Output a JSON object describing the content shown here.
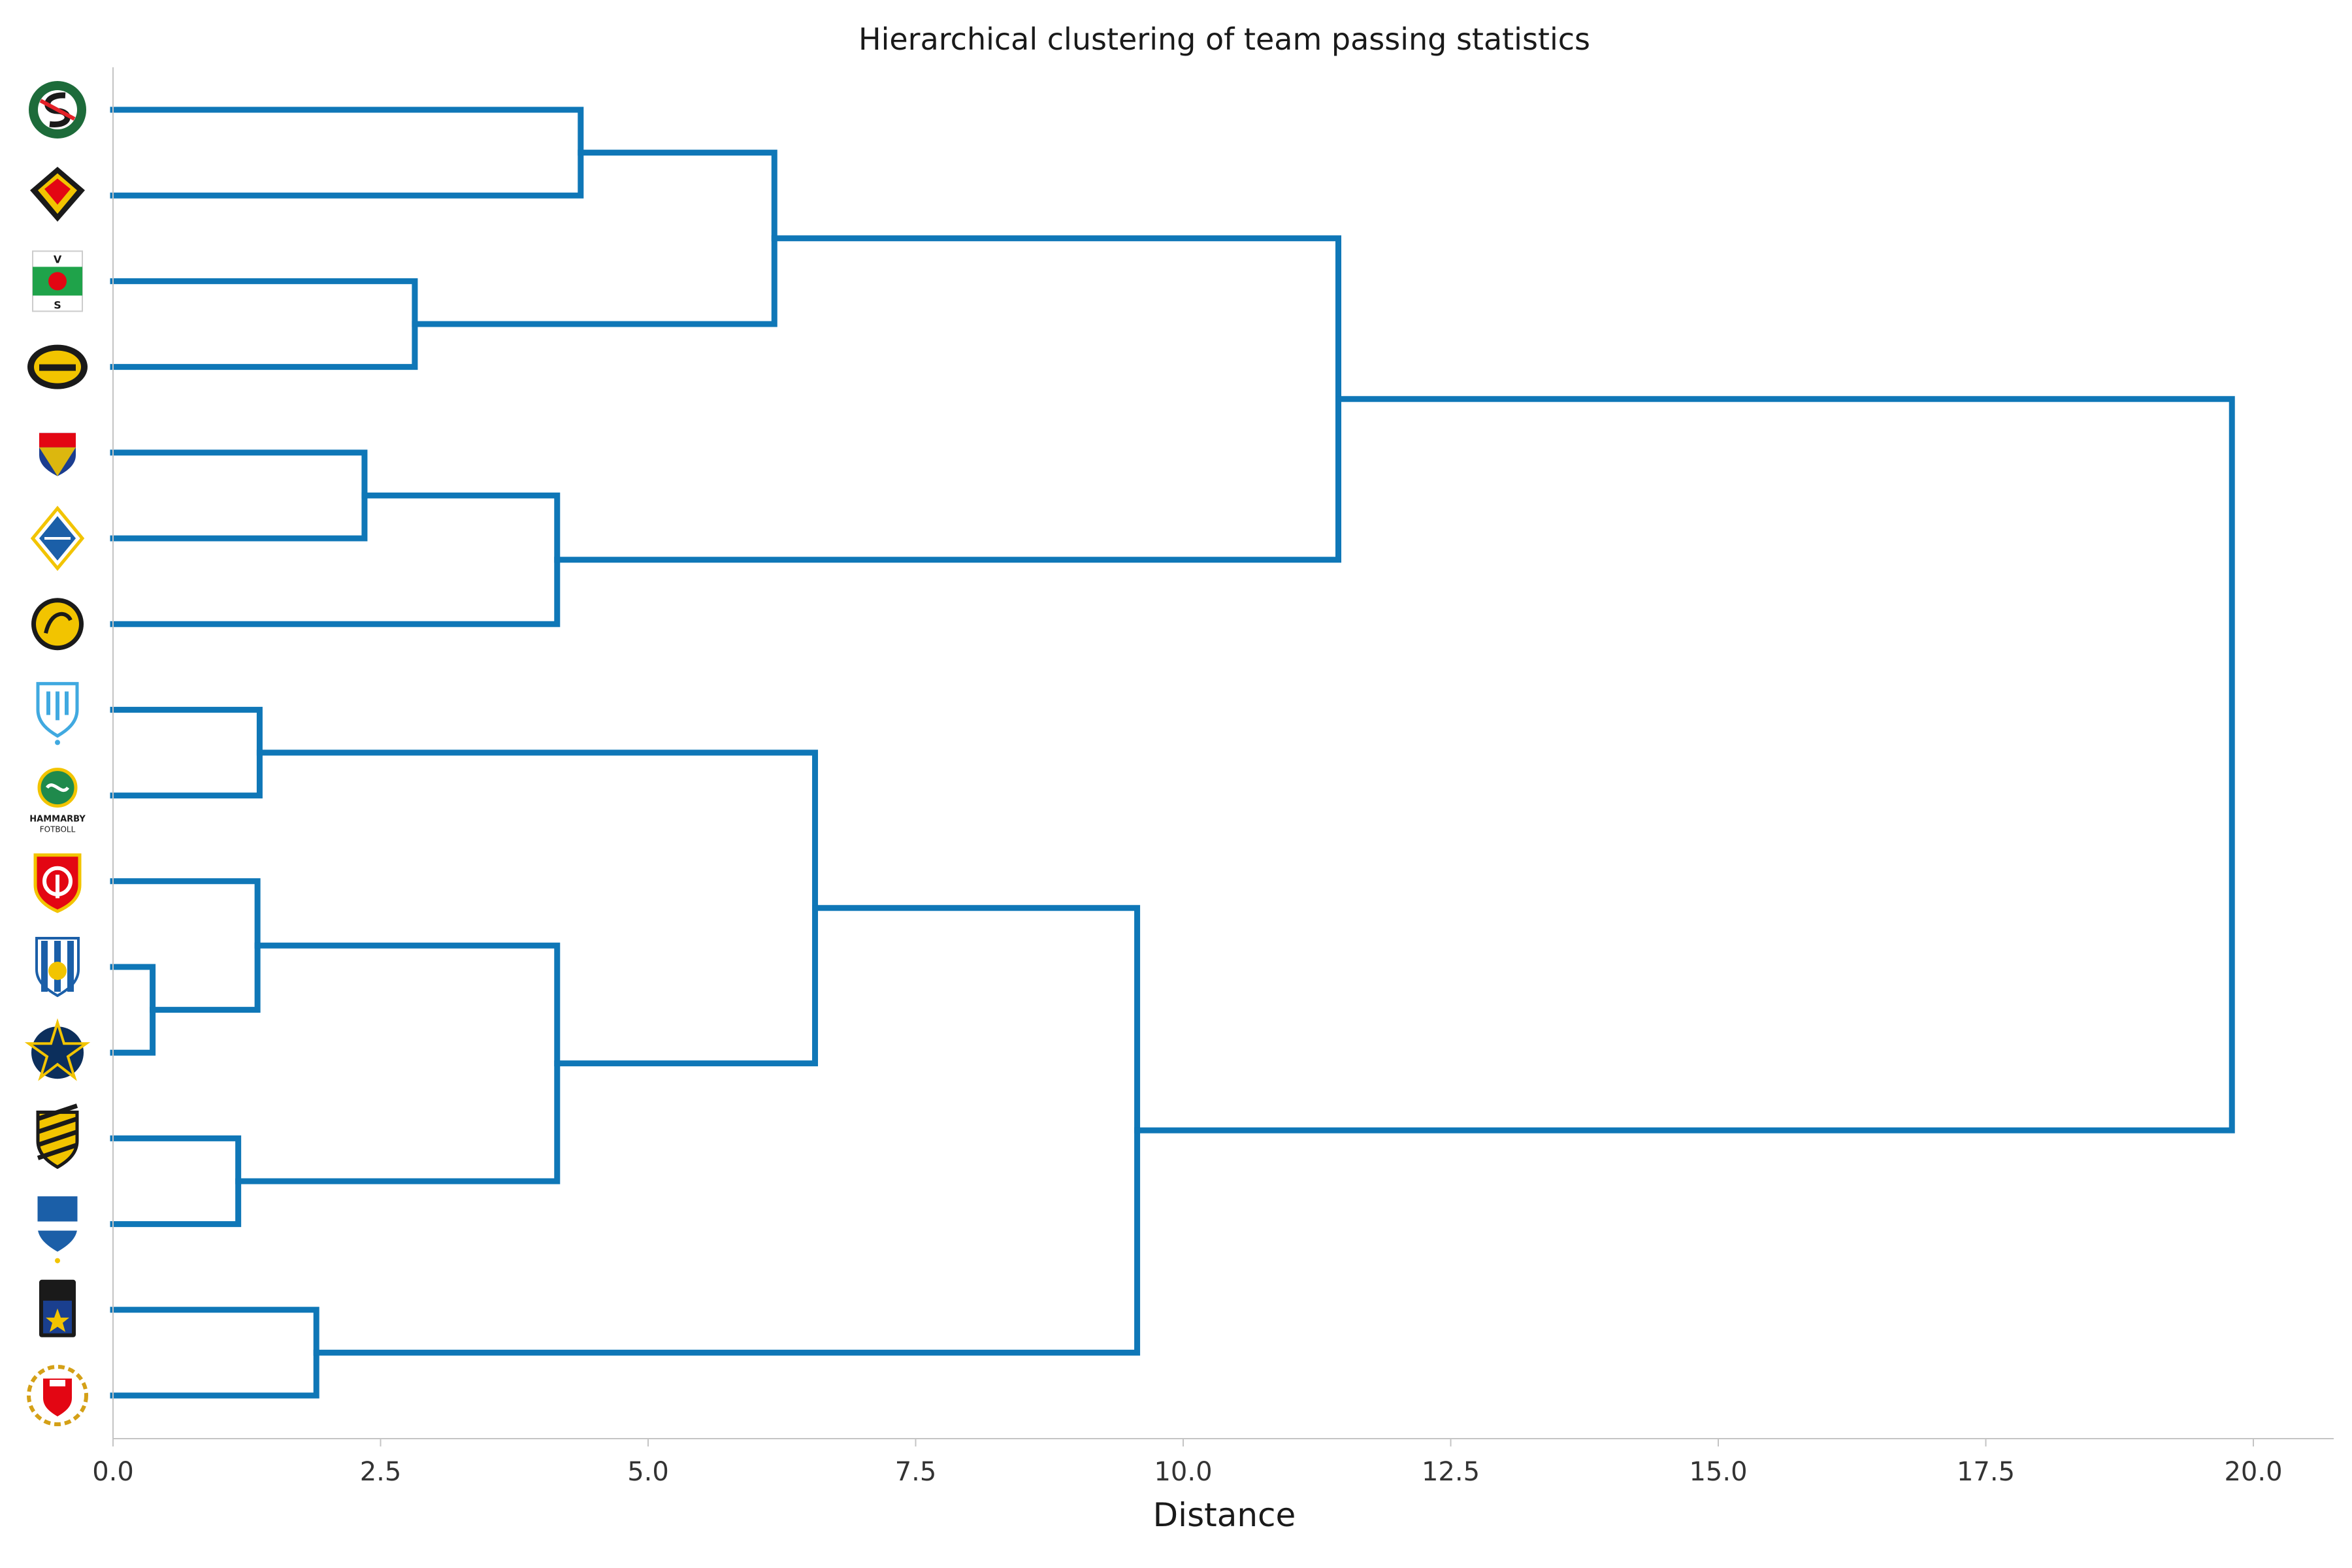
{
  "chart_data": {
    "type": "dendrogram",
    "orientation": "horizontal",
    "title": "Hierarchical clustering of team passing statistics",
    "xlabel": "Distance",
    "ylabel": "",
    "xlim": [
      0,
      20.8
    ],
    "xticks": [
      0.0,
      2.5,
      5.0,
      7.5,
      10.0,
      12.5,
      15.0,
      17.5,
      20.0
    ],
    "xtick_labels": [
      "0.0",
      "2.5",
      "5.0",
      "7.5",
      "10.0",
      "12.5",
      "15.0",
      "17.5",
      "20.0"
    ],
    "line_color": "#0f77b7",
    "leaves": [
      {
        "team": "Örebro SK",
        "logo": "orebro",
        "primary": "#1d6b3a",
        "secondary": "#e32128"
      },
      {
        "team": "Östersunds FK",
        "logo": "ostersund",
        "primary": "#e30613",
        "secondary": "#f2c400"
      },
      {
        "team": "Varbergs BoIS",
        "logo": "varberg",
        "primary": "#1fa34a",
        "secondary": "#ffffff"
      },
      {
        "team": "Mjällby AIF",
        "logo": "mjallby",
        "primary": "#f2c400",
        "secondary": "#1a1a1a"
      },
      {
        "team": "Djurgårdens IF",
        "logo": "djurgarden",
        "primary": "#1b3d8f",
        "secondary": "#e30613"
      },
      {
        "team": "Halmstads BK",
        "logo": "halmstad",
        "primary": "#1b5fa8",
        "secondary": "#f2c400"
      },
      {
        "team": "IF Elfsborg",
        "logo": "elfsborg",
        "primary": "#f2c400",
        "secondary": "#1a1a1a"
      },
      {
        "team": "Malmö FF",
        "logo": "malmo",
        "primary": "#40a9e0",
        "secondary": "#ffffff"
      },
      {
        "team": "Hammarby Fotboll",
        "logo": "hammarby",
        "primary": "#1f8a4c",
        "secondary": "#f2c400",
        "label_line1": "HAMMARBY",
        "label_line2": "FOTBOLL"
      },
      {
        "team": "Degerfors IF",
        "logo": "degerfors",
        "primary": "#e30613",
        "secondary": "#ffffff"
      },
      {
        "team": "IFK Göteborg",
        "logo": "goteborg",
        "primary": "#1b5fa8",
        "secondary": "#f2c400"
      },
      {
        "team": "AIK",
        "logo": "aik",
        "primary": "#0c2f5c",
        "secondary": "#f2c400"
      },
      {
        "team": "BK Häcken",
        "logo": "hacken",
        "primary": "#f2c400",
        "secondary": "#1a1a1a"
      },
      {
        "team": "IFK Norrköping",
        "logo": "norrkoping",
        "primary": "#1b5fa8",
        "secondary": "#ffffff"
      },
      {
        "team": "IK Sirius",
        "logo": "sirius",
        "primary": "#1a3f8f",
        "secondary": "#1a1a1a"
      },
      {
        "team": "Kalmar FF",
        "logo": "kalmar",
        "primary": "#e30613",
        "secondary": "#d4a017"
      }
    ],
    "merges": [
      {
        "a": "L10",
        "b": "L11",
        "height": 0.37
      },
      {
        "a": "L7",
        "b": "L8",
        "height": 1.37
      },
      {
        "a": "L9",
        "b": "M0",
        "height": 1.35
      },
      {
        "a": "L12",
        "b": "L13",
        "height": 1.17
      },
      {
        "a": "L14",
        "b": "L15",
        "height": 1.9
      },
      {
        "a": "L4",
        "b": "L5",
        "height": 2.35
      },
      {
        "a": "L2",
        "b": "L3",
        "height": 2.82
      },
      {
        "a": "M2",
        "b": "M3",
        "height": 4.15
      },
      {
        "a": "M5",
        "b": "L6",
        "height": 4.15
      },
      {
        "a": "L0",
        "b": "L1",
        "height": 4.37
      },
      {
        "a": "M9",
        "b": "M6",
        "height": 6.18
      },
      {
        "a": "M1",
        "b": "M7",
        "height": 6.56
      },
      {
        "a": "M11",
        "b": "M4",
        "height": 9.57
      },
      {
        "a": "M10",
        "b": "M8",
        "height": 11.45
      },
      {
        "a": "M13",
        "b": "M12",
        "height": 19.8
      }
    ]
  }
}
